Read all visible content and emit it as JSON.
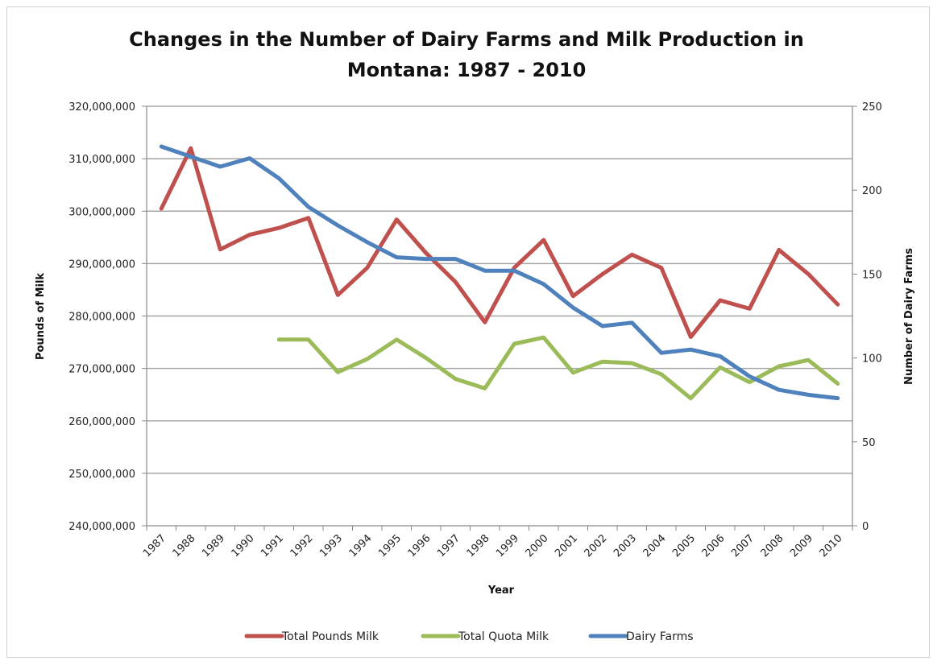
{
  "chart_data": {
    "type": "line",
    "title_line1": "Changes in the Number of Dairy Farms and Milk Production in",
    "title_line2": "Montana: 1987 - 2010",
    "xlabel": "Year",
    "ylabel": "Pounds of Milk",
    "y2label": "Number of Dairy Farms",
    "categories": [
      "1987",
      "1988",
      "1989",
      "1990",
      "1991",
      "1992",
      "1993",
      "1994",
      "1995",
      "1996",
      "1997",
      "1998",
      "1999",
      "2000",
      "2001",
      "2002",
      "2003",
      "2004",
      "2005",
      "2006",
      "2007",
      "2008",
      "2009",
      "2010"
    ],
    "ylim": [
      240000000,
      320000000
    ],
    "y_ticks": [
      "240,000,000",
      "250,000,000",
      "260,000,000",
      "270,000,000",
      "280,000,000",
      "290,000,000",
      "300,000,000",
      "310,000,000",
      "320,000,000"
    ],
    "y2lim": [
      0,
      250
    ],
    "y2_ticks": [
      "0",
      "50",
      "100",
      "150",
      "200",
      "250"
    ],
    "grid": true,
    "legend_position": "bottom",
    "series": [
      {
        "name": "Total Pounds Milk",
        "axis": "left",
        "color": "#c0504d",
        "values": [
          300500000,
          312000000,
          292700000,
          295500000,
          296800000,
          298700000,
          284000000,
          289200000,
          298400000,
          292000000,
          286500000,
          278800000,
          289200000,
          294500000,
          283800000,
          288000000,
          291700000,
          289200000,
          276000000,
          283000000,
          281400000,
          292600000,
          288000000,
          282200000
        ]
      },
      {
        "name": "Total Quota Milk",
        "axis": "left",
        "color": "#9bbb59",
        "values": [
          null,
          null,
          null,
          null,
          275500000,
          275500000,
          269300000,
          271800000,
          275500000,
          272000000,
          268000000,
          266200000,
          274700000,
          275900000,
          269200000,
          271300000,
          271000000,
          268900000,
          264300000,
          270200000,
          267400000,
          270400000,
          271600000,
          267100000
        ]
      },
      {
        "name": "Dairy Farms",
        "axis": "right",
        "color": "#4f81bd",
        "values": [
          226,
          220,
          214,
          219,
          207,
          190,
          179,
          169,
          160,
          159,
          159,
          152,
          152,
          144,
          130,
          119,
          121,
          103,
          105,
          101,
          89,
          81,
          78,
          76
        ]
      }
    ]
  }
}
